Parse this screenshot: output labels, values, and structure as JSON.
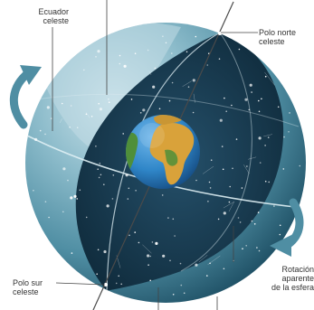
{
  "labels": {
    "ecuador_celeste": "Ecuador\nceleste",
    "polo_norte_celeste": "Polo norte\nceleste",
    "polo_sur_celeste": "Polo sur\nceleste",
    "rotacion_aparente": "Rotación\naparente\nde la esfera"
  },
  "colors": {
    "sphere_light": "#b6d6e0",
    "sphere_mid": "#4f8ea3",
    "sphere_dark": "#1d4e63",
    "inner_band": "#16384d",
    "earth_ocean": "#2f86c8",
    "earth_land": "#d9a23a",
    "earth_green": "#4f8f3a",
    "arrow": "#4f8ea3",
    "stars": "#ffffff",
    "axis_line": "#555555"
  },
  "icons": {
    "rotation_arrow_left": "curved-arrow-icon",
    "rotation_arrow_right": "curved-arrow-icon"
  }
}
